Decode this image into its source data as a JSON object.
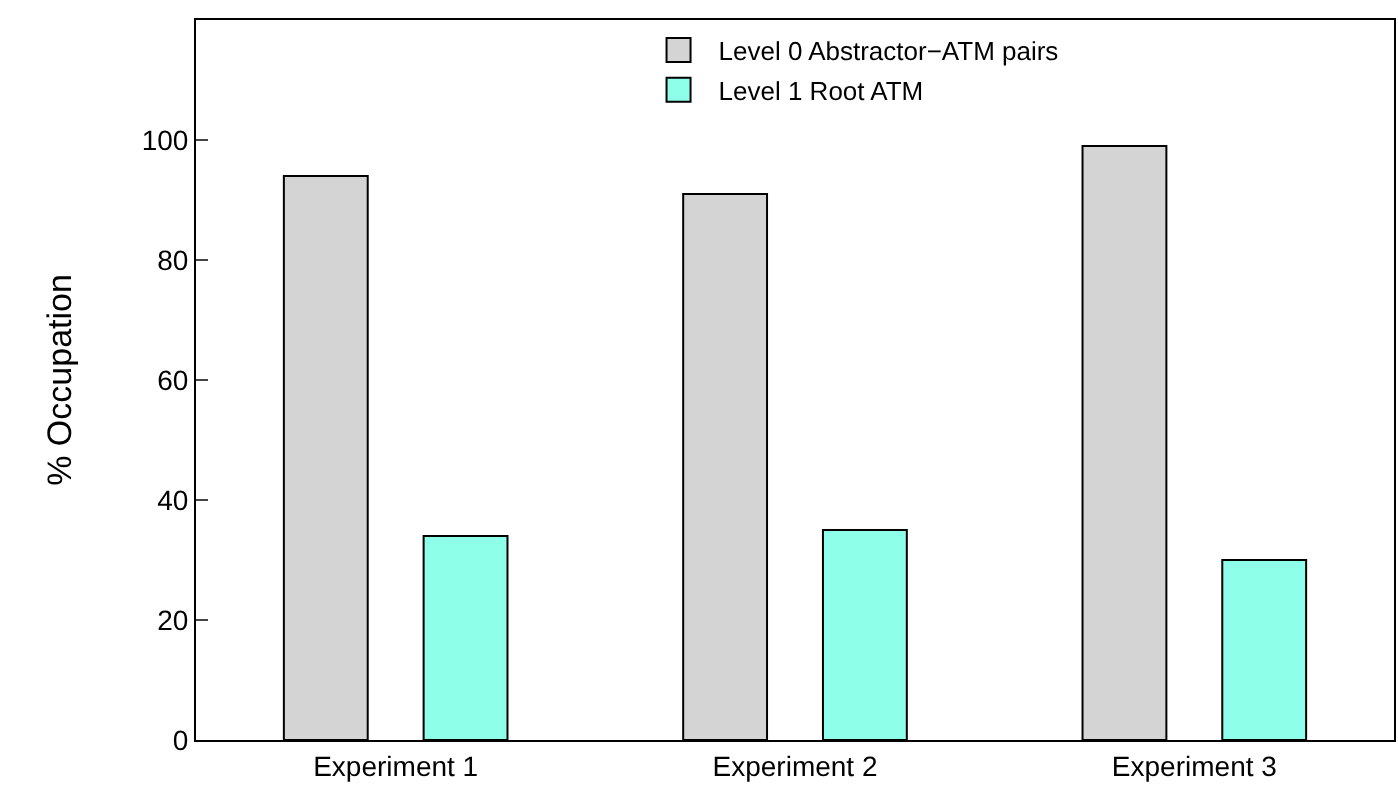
{
  "chart_data": {
    "type": "bar",
    "ylabel": "% Occupation",
    "categories": [
      "Experiment 1",
      "Experiment 2",
      "Experiment 3"
    ],
    "series": [
      {
        "name": "Level 0 Abstractor−ATM pairs",
        "color": "#d4d4d4",
        "values": [
          94,
          91,
          99
        ]
      },
      {
        "name": "Level 1 Root ATM",
        "color": "#8effe8",
        "values": [
          34,
          35,
          30
        ]
      }
    ],
    "ylim": [
      0,
      120
    ],
    "yticks": [
      0,
      20,
      40,
      60,
      80,
      100
    ],
    "grid": false,
    "legend": "top right"
  }
}
